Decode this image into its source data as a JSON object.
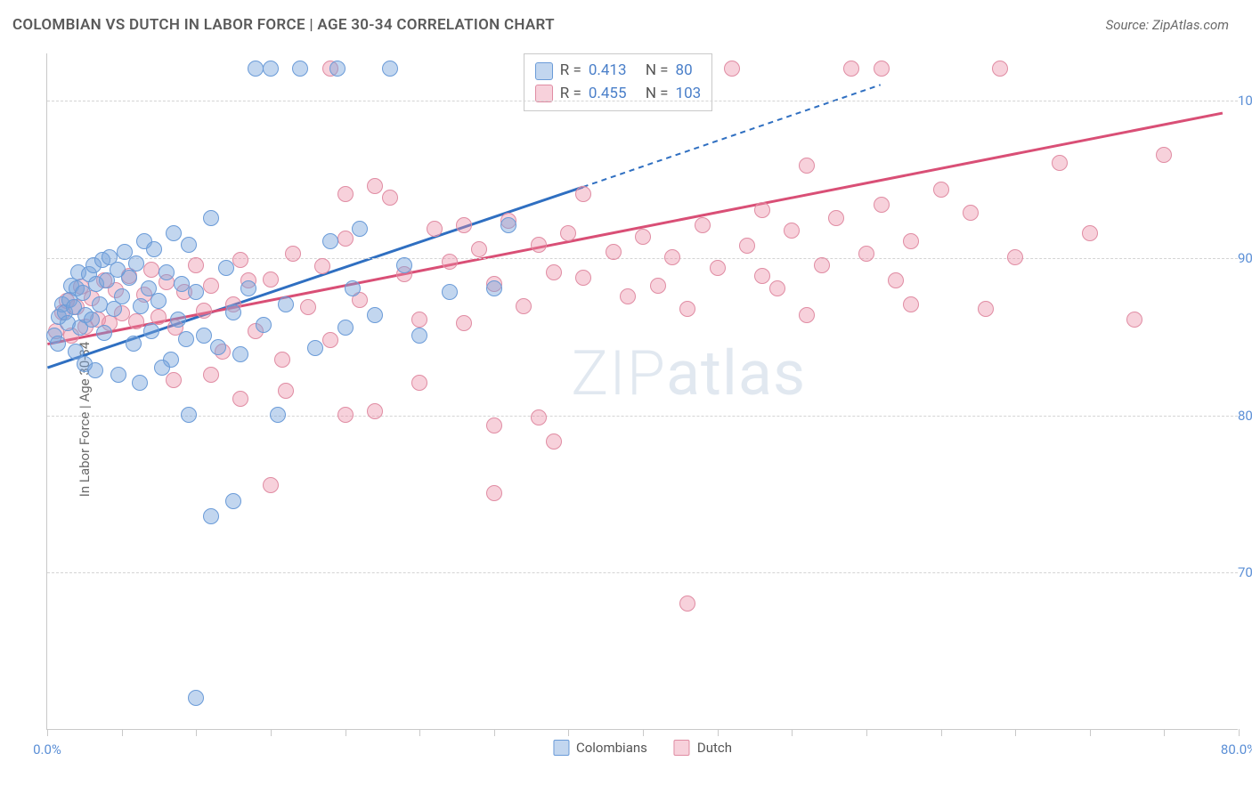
{
  "header": {
    "title": "COLOMBIAN VS DUTCH IN LABOR FORCE | AGE 30-34 CORRELATION CHART",
    "source_prefix": "Source: ",
    "source_name": "ZipAtlas.com"
  },
  "axes": {
    "ylabel": "In Labor Force | Age 30-34",
    "xlim": [
      0,
      80
    ],
    "ylim": [
      60,
      103
    ],
    "yticks": [
      {
        "v": 70,
        "label": "70.0%"
      },
      {
        "v": 80,
        "label": "80.0%"
      },
      {
        "v": 90,
        "label": "90.0%"
      },
      {
        "v": 100,
        "label": "100.0%"
      }
    ],
    "xticks_major": [
      {
        "v": 0,
        "label": "0.0%"
      },
      {
        "v": 80,
        "label": "80.0%"
      }
    ],
    "xticks_minor": [
      5,
      10,
      15,
      20,
      25,
      30,
      35,
      40,
      45,
      50,
      55,
      60,
      65,
      70,
      75
    ],
    "grid_color": "#d4d4d4",
    "axis_color": "#c9c9c9"
  },
  "series": {
    "colombians": {
      "label": "Colombians",
      "fill": "rgba(120,165,220,0.45)",
      "stroke": "#6a9bd8",
      "line_color": "#2f6fc1",
      "marker_radius": 9,
      "trend": {
        "x1": 0,
        "y1": 83.0,
        "x2_solid": 36,
        "y2_solid": 94.5,
        "x2_dash": 56,
        "y2_dash": 101
      },
      "R": "0.413",
      "N": "80",
      "points": [
        [
          0.5,
          85
        ],
        [
          0.8,
          86.2
        ],
        [
          1,
          87
        ],
        [
          1.2,
          86.5
        ],
        [
          1.4,
          85.8
        ],
        [
          1.5,
          87.3
        ],
        [
          1.6,
          88.2
        ],
        [
          1.8,
          86.8
        ],
        [
          2,
          88
        ],
        [
          2.1,
          89
        ],
        [
          2.2,
          85.5
        ],
        [
          2.4,
          87.7
        ],
        [
          2.6,
          86.3
        ],
        [
          2.8,
          88.9
        ],
        [
          3,
          86
        ],
        [
          3.1,
          89.5
        ],
        [
          3.3,
          88.3
        ],
        [
          3.5,
          87
        ],
        [
          3.7,
          89.8
        ],
        [
          3.8,
          85.2
        ],
        [
          4,
          88.5
        ],
        [
          4.2,
          90
        ],
        [
          4.5,
          86.7
        ],
        [
          4.7,
          89.2
        ],
        [
          5,
          87.5
        ],
        [
          5.2,
          90.3
        ],
        [
          5.5,
          88.7
        ],
        [
          5.8,
          84.5
        ],
        [
          6,
          89.6
        ],
        [
          6.3,
          86.9
        ],
        [
          6.5,
          91
        ],
        [
          6.8,
          88
        ],
        [
          7,
          85.3
        ],
        [
          7.2,
          90.5
        ],
        [
          7.5,
          87.2
        ],
        [
          8,
          89
        ],
        [
          8.3,
          83.5
        ],
        [
          8.5,
          91.5
        ],
        [
          8.8,
          86
        ],
        [
          9,
          88.3
        ],
        [
          9.3,
          84.8
        ],
        [
          9.5,
          90.8
        ],
        [
          10,
          87.8
        ],
        [
          10.5,
          85
        ],
        [
          11,
          92.5
        ],
        [
          11.5,
          84.3
        ],
        [
          12,
          89.3
        ],
        [
          12.5,
          86.5
        ],
        [
          13,
          83.8
        ],
        [
          13.5,
          88
        ],
        [
          14,
          102
        ],
        [
          14.5,
          85.7
        ],
        [
          15,
          102
        ],
        [
          15.5,
          80
        ],
        [
          16,
          87
        ],
        [
          17,
          102
        ],
        [
          18,
          84.2
        ],
        [
          19,
          91
        ],
        [
          19.5,
          102
        ],
        [
          20,
          85.5
        ],
        [
          20.5,
          88
        ],
        [
          21,
          91.8
        ],
        [
          22,
          86.3
        ],
        [
          23,
          102
        ],
        [
          24,
          89.5
        ],
        [
          25,
          85
        ],
        [
          27,
          87.8
        ],
        [
          30,
          88
        ],
        [
          31,
          92
        ],
        [
          11,
          73.5
        ],
        [
          12.5,
          74.5
        ],
        [
          9.5,
          80
        ],
        [
          2.5,
          83.2
        ],
        [
          3.2,
          82.8
        ],
        [
          4.8,
          82.5
        ],
        [
          6.2,
          82
        ],
        [
          7.7,
          83
        ],
        [
          0.7,
          84.5
        ],
        [
          1.9,
          84
        ],
        [
          10,
          62
        ]
      ]
    },
    "dutch": {
      "label": "Dutch",
      "fill": "rgba(235,140,165,0.40)",
      "stroke": "#e08ca3",
      "line_color": "#d94f76",
      "marker_radius": 9,
      "trend": {
        "x1": 0,
        "y1": 84.5,
        "x2_solid": 79,
        "y2_solid": 99.2,
        "x2_dash": 79,
        "y2_dash": 99.2
      },
      "R": "0.455",
      "N": "103",
      "points": [
        [
          0.6,
          85.3
        ],
        [
          1,
          86.5
        ],
        [
          1.3,
          87.2
        ],
        [
          1.6,
          85
        ],
        [
          2,
          86.8
        ],
        [
          2.3,
          88.1
        ],
        [
          2.6,
          85.6
        ],
        [
          3,
          87.4
        ],
        [
          3.4,
          86
        ],
        [
          3.8,
          88.5
        ],
        [
          4.2,
          85.8
        ],
        [
          4.6,
          87.9
        ],
        [
          5,
          86.4
        ],
        [
          5.5,
          88.8
        ],
        [
          6,
          85.9
        ],
        [
          6.5,
          87.6
        ],
        [
          7,
          89.2
        ],
        [
          7.5,
          86.2
        ],
        [
          8,
          88.4
        ],
        [
          8.6,
          85.5
        ],
        [
          9.2,
          87.8
        ],
        [
          10,
          89.5
        ],
        [
          10.5,
          86.6
        ],
        [
          11,
          88.2
        ],
        [
          11.8,
          84
        ],
        [
          12.5,
          87
        ],
        [
          13,
          89.8
        ],
        [
          14,
          85.3
        ],
        [
          15,
          88.6
        ],
        [
          15.8,
          83.5
        ],
        [
          16.5,
          90.2
        ],
        [
          17.5,
          86.8
        ],
        [
          18.5,
          89.4
        ],
        [
          19,
          84.7
        ],
        [
          20,
          91.2
        ],
        [
          21,
          87.3
        ],
        [
          22,
          94.5
        ],
        [
          23,
          93.8
        ],
        [
          24,
          88.9
        ],
        [
          25,
          86
        ],
        [
          26,
          91.8
        ],
        [
          27,
          89.7
        ],
        [
          28,
          85.8
        ],
        [
          29,
          90.5
        ],
        [
          30,
          88.3
        ],
        [
          31,
          92.3
        ],
        [
          32,
          86.9
        ],
        [
          33,
          90.8
        ],
        [
          34,
          89
        ],
        [
          35,
          91.5
        ],
        [
          36,
          88.7
        ],
        [
          38,
          90.3
        ],
        [
          39,
          87.5
        ],
        [
          40,
          91.3
        ],
        [
          41,
          88.2
        ],
        [
          42,
          90
        ],
        [
          43,
          86.7
        ],
        [
          44,
          92
        ],
        [
          45,
          89.3
        ],
        [
          46,
          102
        ],
        [
          47,
          90.7
        ],
        [
          48,
          93
        ],
        [
          49,
          88
        ],
        [
          50,
          91.7
        ],
        [
          51,
          95.8
        ],
        [
          52,
          89.5
        ],
        [
          53,
          92.5
        ],
        [
          54,
          102
        ],
        [
          55,
          90.2
        ],
        [
          56,
          93.3
        ],
        [
          57,
          88.5
        ],
        [
          58,
          91
        ],
        [
          60,
          94.3
        ],
        [
          62,
          92.8
        ],
        [
          64,
          102
        ],
        [
          65,
          90
        ],
        [
          56,
          102
        ],
        [
          68,
          96
        ],
        [
          70,
          91.5
        ],
        [
          73,
          86
        ],
        [
          75,
          96.5
        ],
        [
          63,
          86.7
        ],
        [
          51,
          86.3
        ],
        [
          20,
          94
        ],
        [
          22,
          80.2
        ],
        [
          30,
          75
        ],
        [
          30,
          79.3
        ],
        [
          33,
          79.8
        ],
        [
          34,
          78.3
        ],
        [
          20,
          80
        ],
        [
          15,
          75.5
        ],
        [
          25,
          82
        ],
        [
          16,
          81.5
        ],
        [
          11,
          82.5
        ],
        [
          13,
          81
        ],
        [
          8.5,
          82.2
        ],
        [
          43,
          68
        ],
        [
          19,
          102
        ],
        [
          13.5,
          88.5
        ],
        [
          28,
          92
        ],
        [
          36,
          94
        ],
        [
          48,
          88.8
        ],
        [
          58,
          87
        ]
      ]
    }
  },
  "stats_box": {
    "r_label": "R =",
    "n_label": "N ="
  },
  "legend": {
    "items": [
      {
        "key": "colombians",
        "label": "Colombians"
      },
      {
        "key": "dutch",
        "label": "Dutch"
      }
    ]
  },
  "watermark": {
    "part1": "ZIP",
    "part2": "atlas"
  }
}
